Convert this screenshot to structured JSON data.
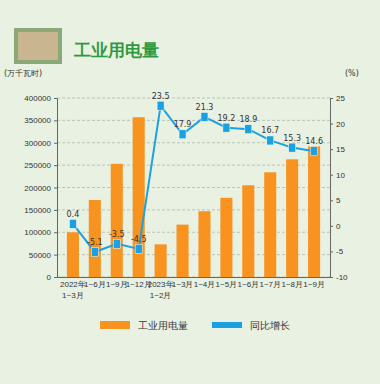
{
  "chart_data": {
    "type": "bar",
    "title": "工业用电量",
    "y_label": "(万千瓦时)",
    "y2_label": "(%)",
    "categories": [
      "2022年\n1~3月",
      "1~6月",
      "1~9月",
      "1~12月",
      "2023年\n1~2月",
      "1~3月",
      "1~4月",
      "1~5月",
      "1~6月",
      "1~7月",
      "1~8月",
      "1~9月"
    ],
    "series": [
      {
        "name": "工业用电量",
        "type": "bar",
        "color": "#f7931e",
        "values": [
          100000,
          172000,
          253000,
          357000,
          73000,
          117000,
          147000,
          177000,
          205000,
          234000,
          263000,
          292000
        ]
      },
      {
        "name": "同比增长",
        "type": "line",
        "axis": "y2",
        "color": "#1ba1e2",
        "marker": "square",
        "data_labels": true,
        "values": [
          0.4,
          -5.1,
          -3.5,
          -4.5,
          23.5,
          17.9,
          21.3,
          19.2,
          18.9,
          16.7,
          15.3,
          14.6
        ]
      }
    ],
    "ylim": [
      0,
      400000
    ],
    "yticks": [
      0,
      50000,
      100000,
      150000,
      200000,
      250000,
      300000,
      350000,
      400000
    ],
    "y2lim": [
      -10,
      25
    ],
    "y2ticks": [
      -10,
      -5,
      0,
      5,
      10,
      15,
      20,
      25
    ],
    "grid": true,
    "legend": "bottom"
  }
}
